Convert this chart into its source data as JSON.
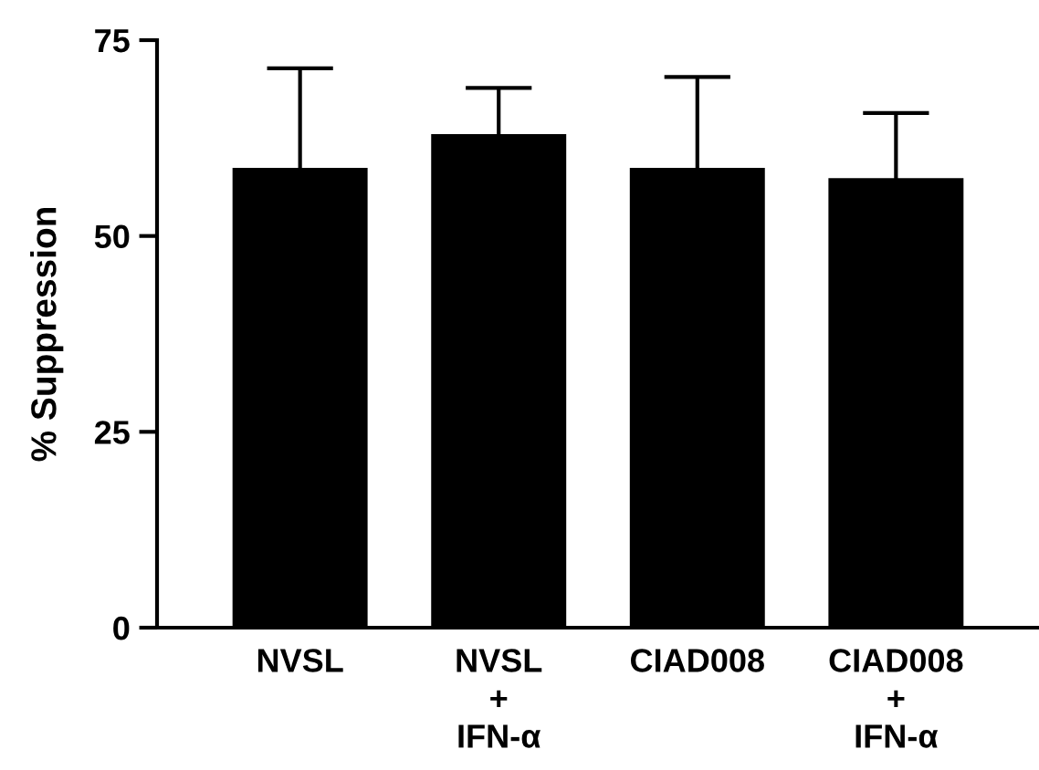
{
  "chart_data": {
    "type": "bar",
    "ylabel": "% Suppression",
    "categories": [
      "NVSL",
      "NVSL\n+\nIFN-α",
      "CIAD008",
      "CIAD008\n+\nIFN-α"
    ],
    "values": [
      58.7,
      63.0,
      58.7,
      57.4
    ],
    "errors": [
      12.7,
      5.9,
      11.6,
      8.3
    ],
    "color": "#000000",
    "ylim": [
      0,
      75
    ],
    "yticks": [
      0,
      25,
      50,
      75
    ],
    "grid": false,
    "legend": false
  }
}
